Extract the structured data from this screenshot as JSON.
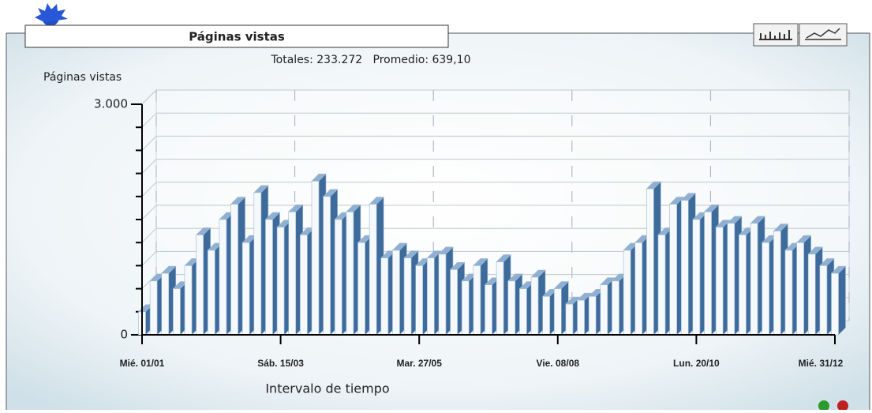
{
  "chart_data": {
    "type": "bar3d",
    "title": "Páginas vistas",
    "subtitle": "Totales: 233.272   Promedio: 639,10",
    "y_label": "Páginas vistas",
    "x_label": "Intervalo de tiempo",
    "categories": [
      "Mié. 01/01",
      null,
      null,
      null,
      null,
      null,
      null,
      null,
      null,
      null,
      null,
      null,
      "Sáb. 15/03",
      null,
      null,
      null,
      null,
      null,
      null,
      null,
      null,
      null,
      null,
      null,
      "Mar. 27/05",
      null,
      null,
      null,
      null,
      null,
      null,
      null,
      null,
      null,
      null,
      null,
      "Vie. 08/08",
      null,
      null,
      null,
      null,
      null,
      null,
      null,
      null,
      null,
      null,
      null,
      "Lun. 20/10",
      null,
      null,
      null,
      null,
      null,
      null,
      null,
      null,
      null,
      null,
      null,
      "Mié. 31/12"
    ],
    "values": [
      300,
      700,
      800,
      600,
      900,
      1300,
      1100,
      1500,
      1700,
      1200,
      1850,
      1500,
      1400,
      1600,
      1300,
      2000,
      1800,
      1500,
      1600,
      1200,
      1700,
      1000,
      1100,
      1000,
      900,
      1000,
      1050,
      850,
      700,
      900,
      650,
      950,
      700,
      600,
      750,
      500,
      600,
      400,
      450,
      500,
      650,
      700,
      1100,
      1200,
      1900,
      1300,
      1700,
      1750,
      1500,
      1600,
      1400,
      1450,
      1300,
      1450,
      1200,
      1350,
      1100,
      1200,
      1050,
      900,
      800
    ],
    "color": "#3d6b9c",
    "ylim": [
      0,
      3000
    ],
    "yticks": [
      0,
      {
        "value": 3000,
        "label": "3.000"
      }
    ],
    "minor_yticks": [
      300,
      600,
      900,
      1200,
      1500,
      1800,
      2100,
      2400,
      2700
    ],
    "grid": true
  }
}
